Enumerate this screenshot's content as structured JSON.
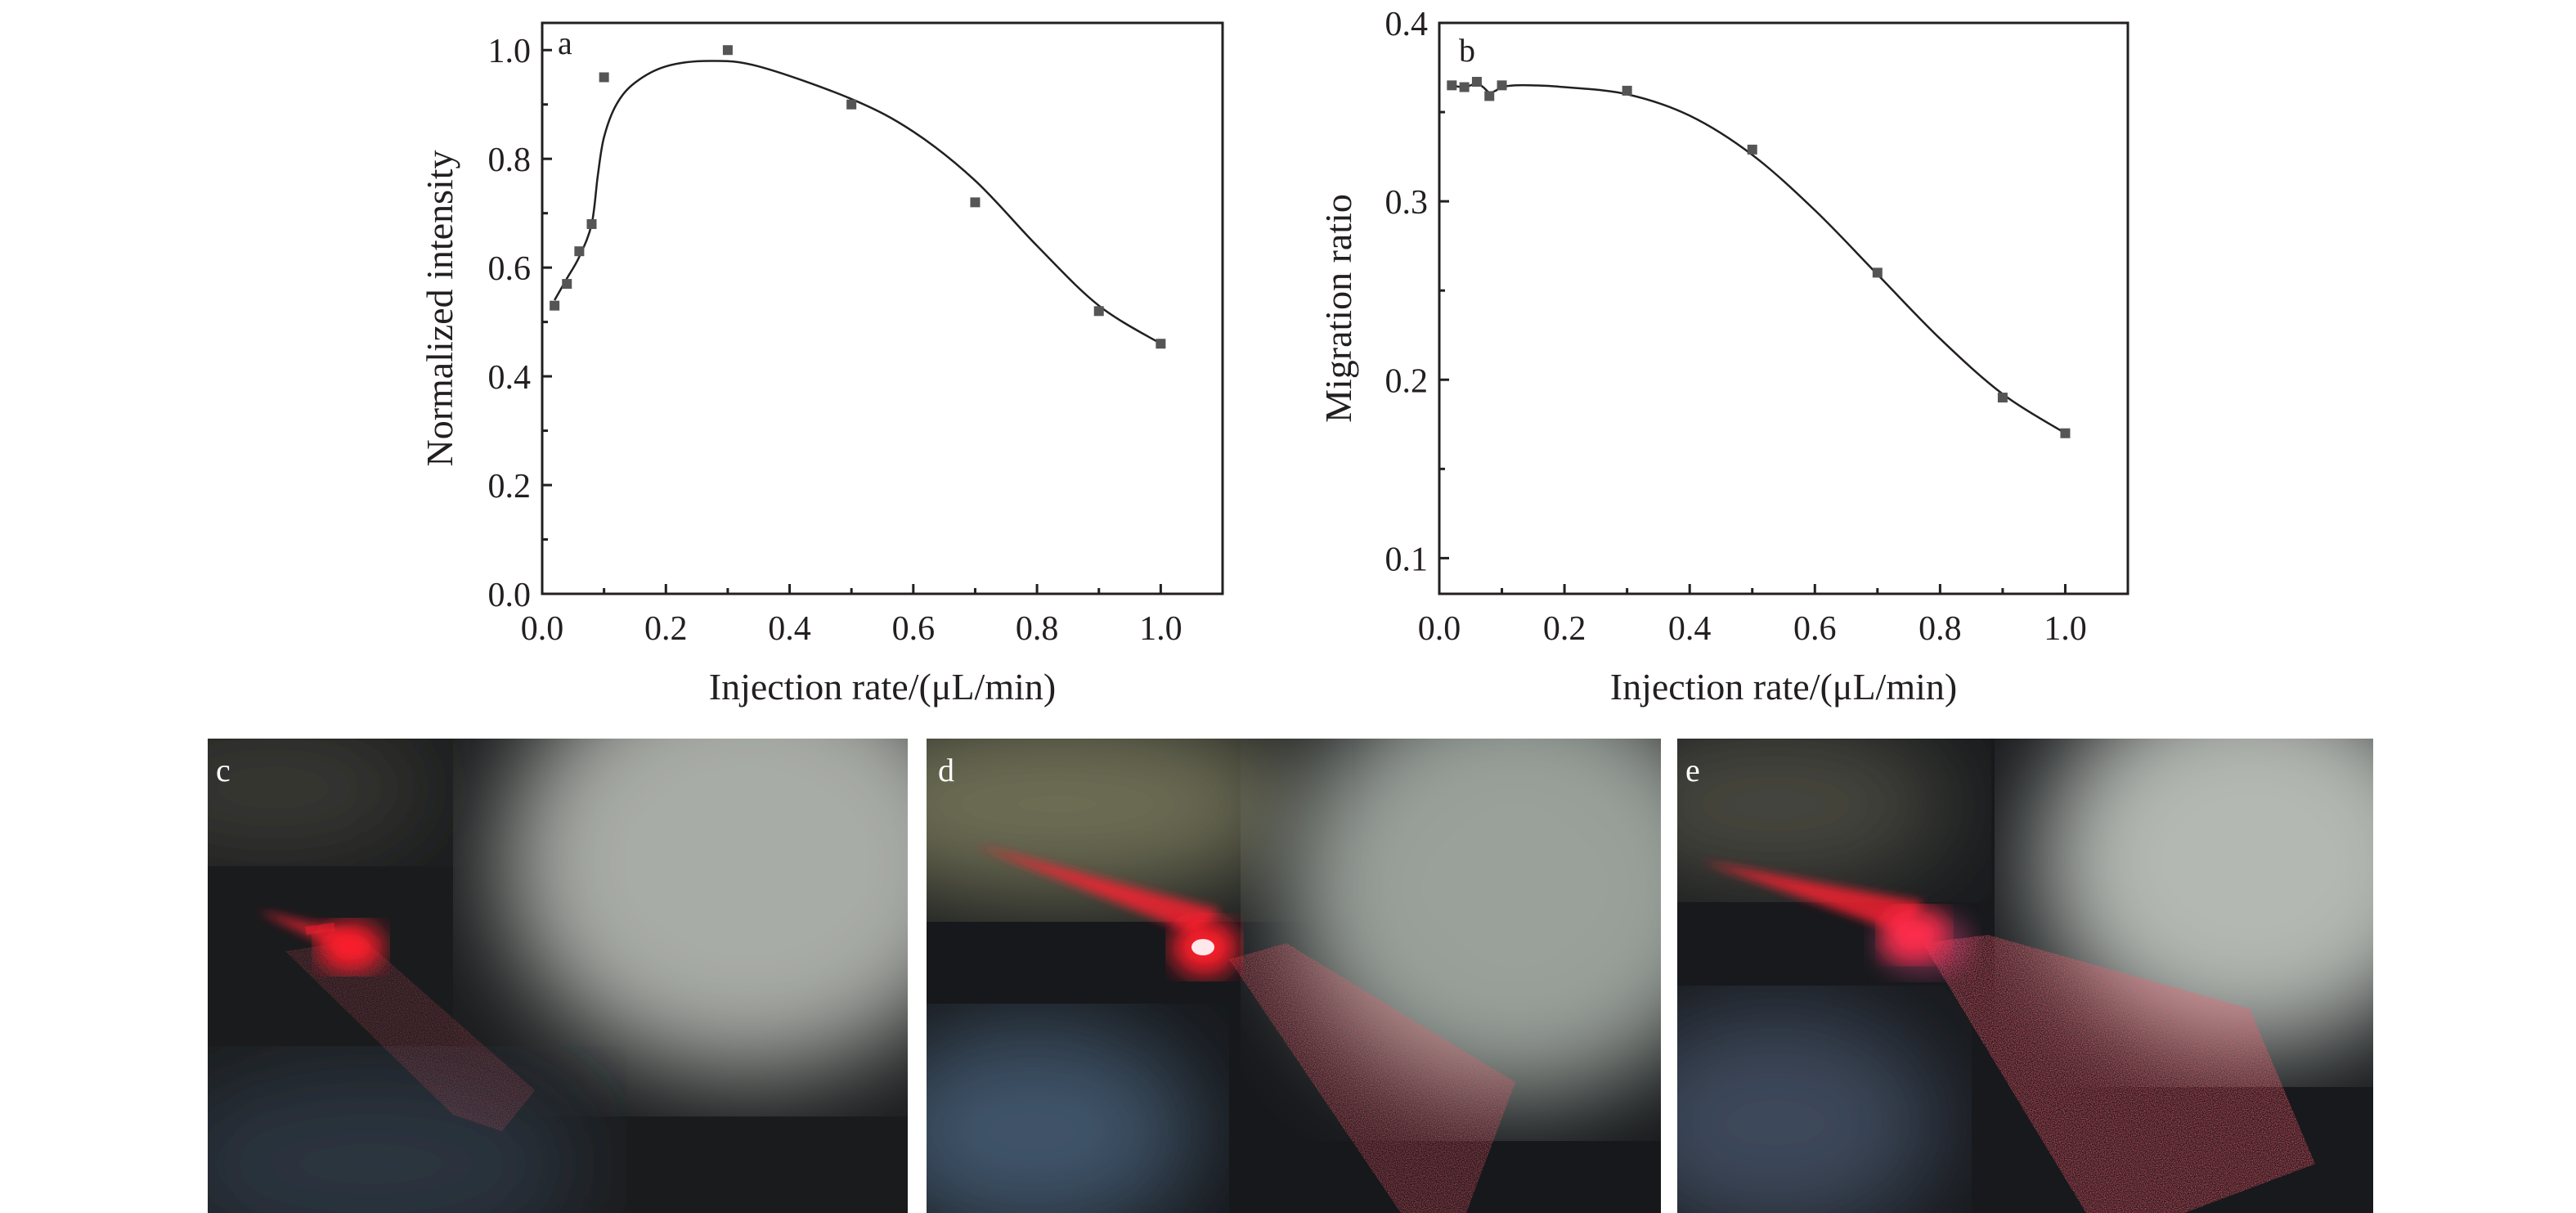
{
  "chart_data": [
    {
      "panel": "a",
      "type": "scatter",
      "xlabel": "Injection rate/(μL/min)",
      "ylabel": "Normalized intensity",
      "xlim": [
        0,
        1.1
      ],
      "ylim": [
        0,
        1.05
      ],
      "xticks": [
        "0.0",
        "0.2",
        "0.4",
        "0.6",
        "0.8",
        "1.0"
      ],
      "yticks": [
        "0.0",
        "0.2",
        "0.4",
        "0.6",
        "0.8",
        "1.0"
      ],
      "grid": false,
      "series": [
        {
          "kind": "points",
          "marker": "square",
          "color": "#555555",
          "x": [
            0.02,
            0.04,
            0.06,
            0.08,
            0.1,
            0.3,
            0.5,
            0.7,
            0.9,
            1.0
          ],
          "y": [
            0.53,
            0.57,
            0.63,
            0.68,
            0.95,
            1.0,
            0.9,
            0.72,
            0.52,
            0.46
          ]
        },
        {
          "kind": "fit",
          "color": "#231f20",
          "x": [
            0.02,
            0.04,
            0.06,
            0.08,
            0.09,
            0.1,
            0.12,
            0.15,
            0.2,
            0.27,
            0.35,
            0.5,
            0.6,
            0.7,
            0.8,
            0.9,
            1.0
          ],
          "y": [
            0.54,
            0.58,
            0.62,
            0.68,
            0.77,
            0.84,
            0.9,
            0.94,
            0.97,
            0.98,
            0.97,
            0.91,
            0.85,
            0.76,
            0.64,
            0.53,
            0.46
          ]
        }
      ]
    },
    {
      "panel": "b",
      "type": "scatter",
      "xlabel": "Injection rate/(μL/min)",
      "ylabel": "Migration ratio",
      "xlim": [
        0,
        1.1
      ],
      "ylim": [
        0.08,
        0.4
      ],
      "xticks": [
        "0.0",
        "0.2",
        "0.4",
        "0.6",
        "0.8",
        "1.0"
      ],
      "yticks": [
        "0.1",
        "0.2",
        "0.3",
        "0.4"
      ],
      "grid": false,
      "series": [
        {
          "kind": "points",
          "marker": "square",
          "color": "#555555",
          "x": [
            0.02,
            0.04,
            0.06,
            0.08,
            0.1,
            0.3,
            0.5,
            0.7,
            0.9,
            1.0
          ],
          "y": [
            0.365,
            0.364,
            0.367,
            0.359,
            0.365,
            0.362,
            0.329,
            0.26,
            0.19,
            0.17
          ]
        },
        {
          "kind": "fit",
          "color": "#231f20",
          "x": [
            0.02,
            0.04,
            0.06,
            0.07,
            0.08,
            0.09,
            0.1,
            0.12,
            0.15,
            0.2,
            0.3,
            0.4,
            0.5,
            0.6,
            0.7,
            0.8,
            0.9,
            1.0
          ],
          "y": [
            0.365,
            0.364,
            0.366,
            0.364,
            0.361,
            0.362,
            0.364,
            0.365,
            0.365,
            0.364,
            0.36,
            0.348,
            0.326,
            0.295,
            0.259,
            0.223,
            0.192,
            0.17
          ]
        }
      ]
    }
  ],
  "photos": [
    {
      "panel": "c",
      "jet_level": 0.25
    },
    {
      "panel": "d",
      "jet_level": 0.75
    },
    {
      "panel": "e",
      "jet_level": 1.0
    }
  ]
}
